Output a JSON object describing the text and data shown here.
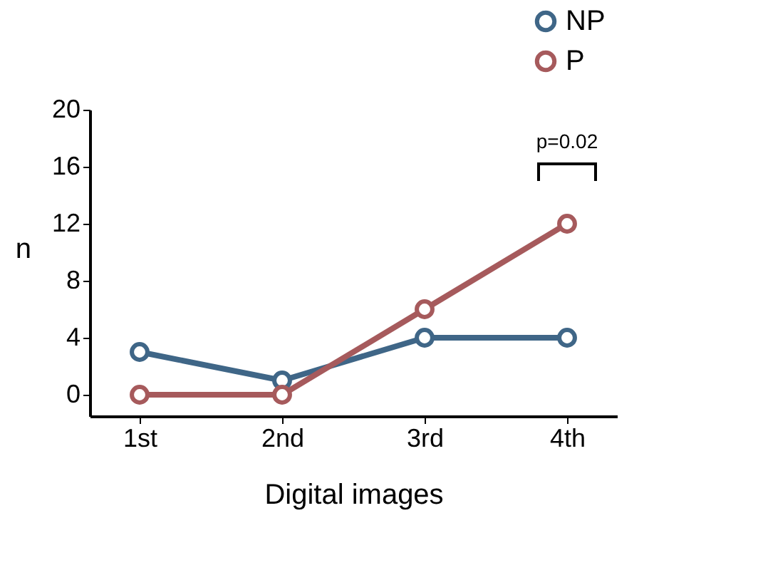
{
  "chart_data": {
    "type": "line",
    "xlabel": "Digital images",
    "ylabel": "n",
    "categories": [
      "1st",
      "2nd",
      "3rd",
      "4th"
    ],
    "series": [
      {
        "name": "NP",
        "color": "#3f6687",
        "values": [
          3,
          1,
          4,
          4
        ]
      },
      {
        "name": "P",
        "color": "#a65a5c",
        "values": [
          0,
          0,
          6,
          12
        ]
      }
    ],
    "ylim": [
      -1.5,
      20
    ],
    "yticks": [
      0,
      4,
      8,
      12,
      16,
      20
    ],
    "annotations": [
      "p=0.02"
    ],
    "marker": "circle",
    "line_style": "solid",
    "legend": "top right",
    "grid": false
  }
}
